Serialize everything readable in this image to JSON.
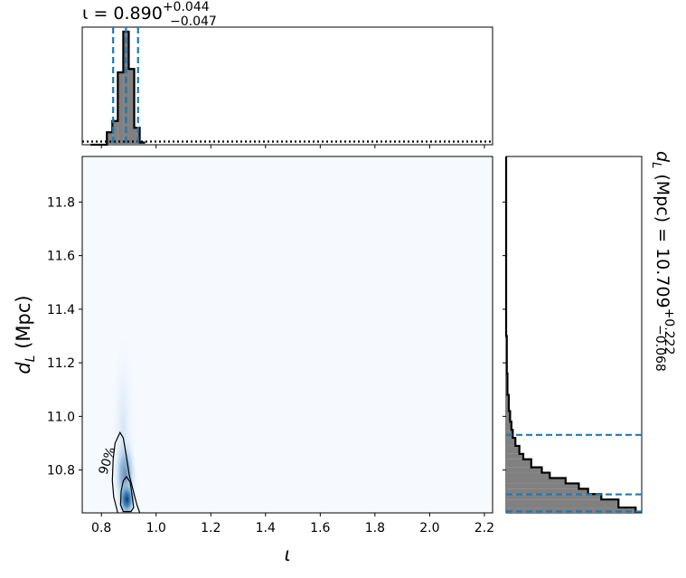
{
  "chart_data": [
    {
      "type": "histogram",
      "panel": "marginal-iota",
      "title": {
        "prefix": "ι = 0.890",
        "sup": "+0.044",
        "sub": "−0.047"
      },
      "xlim": [
        0.73,
        2.23
      ],
      "bin_width": 0.02,
      "posterior_bins": [
        {
          "x0": 0.76,
          "v": 0.0
        },
        {
          "x0": 0.78,
          "v": 0.0
        },
        {
          "x0": 0.8,
          "v": 0.0
        },
        {
          "x0": 0.82,
          "v": 0.11
        },
        {
          "x0": 0.84,
          "v": 0.21
        },
        {
          "x0": 0.86,
          "v": 0.64
        },
        {
          "x0": 0.88,
          "v": 1.0
        },
        {
          "x0": 0.9,
          "v": 0.67
        },
        {
          "x0": 0.92,
          "v": 0.15
        },
        {
          "x0": 0.94,
          "v": 0.02
        }
      ],
      "prior_line": {
        "style": "dotted",
        "level": 0.028
      },
      "quantiles": [
        0.843,
        0.89,
        0.934
      ],
      "quantile_color": "#1f77b4",
      "fill_color": "#808080"
    },
    {
      "type": "heatmap",
      "panel": "joint-density",
      "xlim": [
        0.73,
        2.23
      ],
      "ylim": [
        10.64,
        11.97
      ],
      "xlabel": "ι",
      "ylabel": "d_L (Mpc)",
      "x_ticks": [
        "0.8",
        "1.0",
        "1.2",
        "1.4",
        "1.6",
        "1.8",
        "2.0",
        "2.2"
      ],
      "y_ticks": [
        "10.8",
        "11.0",
        "11.2",
        "11.4",
        "11.6",
        "11.8"
      ],
      "peak": {
        "x": 0.893,
        "y": 10.69
      },
      "contour_label": "90%",
      "contour_90": [
        [
          0.86,
          10.64
        ],
        [
          0.845,
          10.7
        ],
        [
          0.84,
          10.76
        ],
        [
          0.843,
          10.84
        ],
        [
          0.85,
          10.9
        ],
        [
          0.868,
          10.94
        ],
        [
          0.88,
          10.92
        ],
        [
          0.89,
          10.86
        ],
        [
          0.902,
          10.78
        ],
        [
          0.917,
          10.72
        ],
        [
          0.93,
          10.67
        ],
        [
          0.94,
          10.64
        ]
      ],
      "contour_inner": [
        [
          0.87,
          10.67
        ],
        [
          0.872,
          10.72
        ],
        [
          0.88,
          10.76
        ],
        [
          0.892,
          10.775
        ],
        [
          0.905,
          10.755
        ],
        [
          0.913,
          10.7
        ],
        [
          0.918,
          10.66
        ],
        [
          0.908,
          10.645
        ],
        [
          0.88,
          10.645
        ],
        [
          0.87,
          10.67
        ]
      ],
      "background_color": "#f6faff"
    },
    {
      "type": "histogram",
      "panel": "marginal-distance",
      "orientation": "horizontal",
      "title": {
        "prefix": "d",
        "subscript": "L",
        "middle": " (Mpc) = 10.709",
        "sup": "+0.222",
        "sub": "−0.068"
      },
      "ylim": [
        10.64,
        11.97
      ],
      "xmax": 1.0,
      "bins": [
        {
          "y0": 10.64,
          "y1": 10.66,
          "v": 0.98
        },
        {
          "y0": 10.66,
          "y1": 10.69,
          "v": 0.85
        },
        {
          "y0": 10.69,
          "y1": 10.71,
          "v": 0.72
        },
        {
          "y0": 10.71,
          "y1": 10.73,
          "v": 0.62
        },
        {
          "y0": 10.73,
          "y1": 10.75,
          "v": 0.55
        },
        {
          "y0": 10.75,
          "y1": 10.77,
          "v": 0.45
        },
        {
          "y0": 10.77,
          "y1": 10.79,
          "v": 0.33
        },
        {
          "y0": 10.79,
          "y1": 10.81,
          "v": 0.27
        },
        {
          "y0": 10.81,
          "y1": 10.84,
          "v": 0.19
        },
        {
          "y0": 10.84,
          "y1": 10.86,
          "v": 0.13
        },
        {
          "y0": 10.86,
          "y1": 10.89,
          "v": 0.1
        },
        {
          "y0": 10.89,
          "y1": 10.92,
          "v": 0.07
        },
        {
          "y0": 10.92,
          "y1": 10.95,
          "v": 0.05
        },
        {
          "y0": 10.95,
          "y1": 10.98,
          "v": 0.04
        },
        {
          "y0": 10.98,
          "y1": 11.02,
          "v": 0.03
        },
        {
          "y0": 11.02,
          "y1": 11.08,
          "v": 0.02
        },
        {
          "y0": 11.08,
          "y1": 11.16,
          "v": 0.01
        },
        {
          "y0": 11.16,
          "y1": 11.3,
          "v": 0.005
        },
        {
          "y0": 11.3,
          "y1": 11.97,
          "v": 0.0
        }
      ],
      "quantiles": [
        10.641,
        10.709,
        10.931
      ],
      "quantile_color": "#1f77b4",
      "fill_color": "#808080"
    }
  ]
}
